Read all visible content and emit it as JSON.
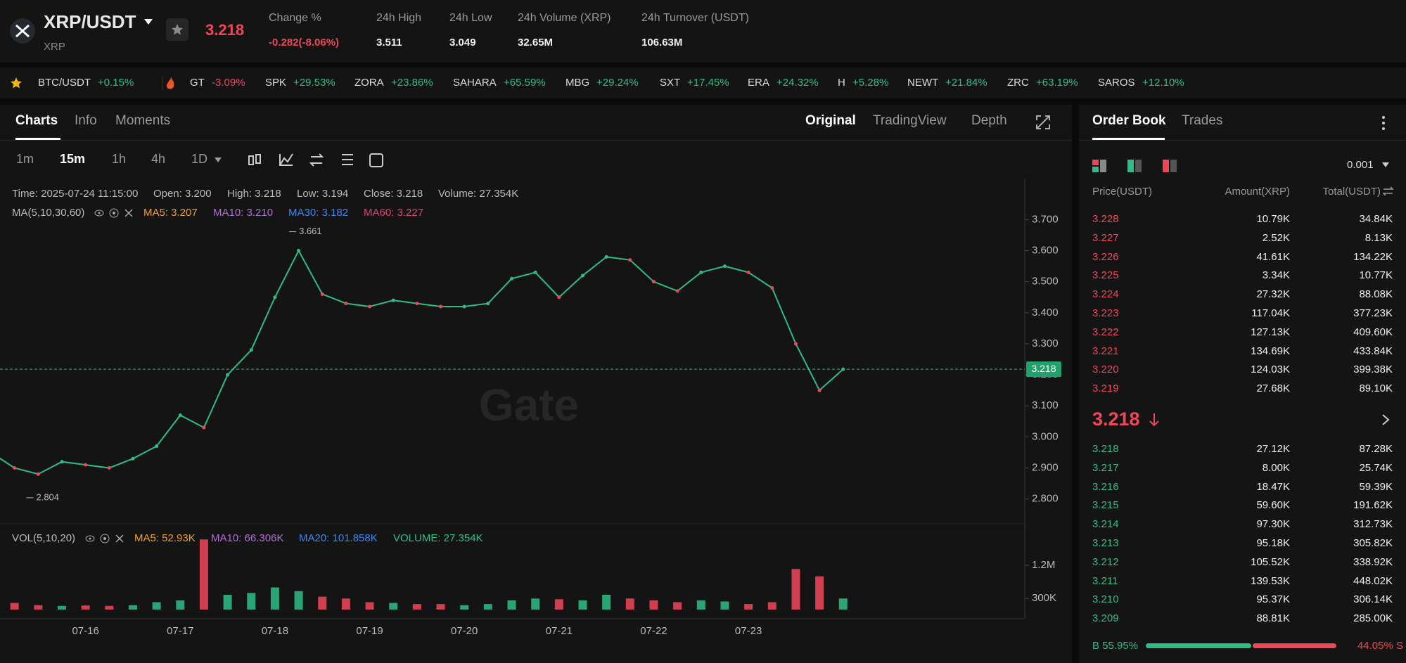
{
  "header": {
    "pair": "XRP/USDT",
    "base": "XRP",
    "price": "3.218",
    "stats": [
      {
        "label": "Change %",
        "value": "-0.282(-8.06%)"
      },
      {
        "label": "24h High",
        "value": "3.511"
      },
      {
        "label": "24h Low",
        "value": "3.049"
      },
      {
        "label": "24h Volume (XRP)",
        "value": "32.65M"
      },
      {
        "label": "24h Turnover (USDT)",
        "value": "106.63M"
      }
    ]
  },
  "ticker": [
    {
      "name": "BTC/USDT",
      "change": "+0.15%"
    },
    {
      "name": "GT",
      "change": "-3.09%"
    },
    {
      "name": "SPK",
      "change": "+29.53%"
    },
    {
      "name": "ZORA",
      "change": "+23.86%"
    },
    {
      "name": "SAHARA",
      "change": "+65.59%"
    },
    {
      "name": "MBG",
      "change": "+29.24%"
    },
    {
      "name": "SXT",
      "change": "+17.45%"
    },
    {
      "name": "ERA",
      "change": "+24.32%"
    },
    {
      "name": "H",
      "change": "+5.28%"
    },
    {
      "name": "NEWT",
      "change": "+21.84%"
    },
    {
      "name": "ZRC",
      "change": "+63.19%"
    },
    {
      "name": "SAROS",
      "change": "+12.10%"
    }
  ],
  "chart_tabs": [
    "Charts",
    "Info",
    "Moments"
  ],
  "view_tabs": [
    "Original",
    "TradingView",
    "Depth"
  ],
  "intervals": [
    "1m",
    "15m",
    "1h",
    "4h",
    "1D"
  ],
  "info_line": [
    "Time: 2025-07-24 11:15:00",
    "Open: 3.200",
    "High: 3.218",
    "Low: 3.194",
    "Close: 3.218",
    "Volume: 27.354K"
  ],
  "ma_legend": {
    "label": "MA(5,10,30,60)",
    "items": [
      {
        "text": "MA5: 3.207",
        "color": "#f0a020"
      },
      {
        "text": "MA10: 3.210",
        "color": "#b36bd8"
      },
      {
        "text": "MA30: 3.182",
        "color": "#3d86f0"
      },
      {
        "text": "MA60: 3.227",
        "color": "#e0407a"
      }
    ]
  },
  "vol_legend": {
    "label": "VOL(5,10,20)",
    "items": [
      {
        "text": "MA5: 52.93K",
        "color": "#f0a020"
      },
      {
        "text": "MA10: 66.306K",
        "color": "#b36bd8"
      },
      {
        "text": "MA20: 101.858K",
        "color": "#3d86f0"
      },
      {
        "text": "VOLUME: 27.354K",
        "color": "#2ebd85"
      }
    ]
  },
  "watermark": "Gate",
  "chart_data": [
    {
      "type": "line",
      "categories": [
        null,
        null,
        null,
        null,
        "07-16",
        null,
        null,
        null,
        "07-17",
        null,
        null,
        null,
        "07-18",
        null,
        null,
        null,
        "07-19",
        null,
        null,
        null,
        "07-20",
        null,
        null,
        null,
        "07-21",
        null,
        null,
        null,
        "07-22",
        null,
        null,
        null,
        "07-23",
        null,
        null,
        null,
        null
      ],
      "values": [
        2.95,
        2.9,
        2.88,
        2.92,
        2.91,
        2.9,
        2.93,
        2.97,
        3.07,
        3.03,
        3.2,
        3.28,
        3.45,
        3.6,
        3.46,
        3.43,
        3.42,
        3.44,
        3.43,
        3.42,
        3.42,
        3.43,
        3.51,
        3.53,
        3.45,
        3.52,
        3.58,
        3.57,
        3.5,
        3.47,
        3.53,
        3.55,
        3.53,
        3.48,
        3.3,
        3.15,
        3.218
      ],
      "color": "#2ebd85",
      "ylim": [
        2.72,
        3.83
      ],
      "yticks": [
        {
          "value": 2.8,
          "label": "2.800"
        },
        {
          "value": 2.9,
          "label": "2.900"
        },
        {
          "value": 3.0,
          "label": "3.000"
        },
        {
          "value": 3.1,
          "label": "3.100"
        },
        {
          "value": 3.2,
          "label": "3.200"
        },
        {
          "value": 3.3,
          "label": "3.300"
        },
        {
          "value": 3.4,
          "label": "3.400"
        },
        {
          "value": 3.5,
          "label": "3.500"
        },
        {
          "value": 3.6,
          "label": "3.600"
        },
        {
          "value": 3.7,
          "label": "3.700"
        }
      ],
      "last_price": {
        "value": 3.218,
        "label": "3.218"
      },
      "high": {
        "value": 3.661,
        "label": "3.661"
      },
      "low": {
        "value": 2.804,
        "label": "2.804"
      }
    },
    {
      "type": "bar",
      "values": [
        150000,
        180000,
        120000,
        100000,
        110000,
        100000,
        120000,
        200000,
        250000,
        1900000,
        400000,
        450000,
        600000,
        500000,
        350000,
        300000,
        200000,
        180000,
        150000,
        150000,
        120000,
        150000,
        250000,
        300000,
        280000,
        250000,
        400000,
        300000,
        250000,
        200000,
        250000,
        220000,
        150000,
        200000,
        1100000,
        900000,
        300000
      ],
      "up_color": "#2ebd85",
      "down_color": "#f0465a",
      "ylim": [
        0,
        2190000
      ],
      "yticks": [
        {
          "value": 300000,
          "label": "300K"
        },
        {
          "value": 1200000,
          "label": "1.2M"
        }
      ]
    }
  ],
  "order_book": {
    "tabs": [
      "Order Book",
      "Trades"
    ],
    "precision": "0.001",
    "columns": [
      "Price(USDT)",
      "Amount(XRP)",
      "Total(USDT)"
    ],
    "asks": [
      [
        "3.228",
        "10.79K",
        "34.84K"
      ],
      [
        "3.227",
        "2.52K",
        "8.13K"
      ],
      [
        "3.226",
        "41.61K",
        "134.22K"
      ],
      [
        "3.225",
        "3.34K",
        "10.77K"
      ],
      [
        "3.224",
        "27.32K",
        "88.08K"
      ],
      [
        "3.223",
        "117.04K",
        "377.23K"
      ],
      [
        "3.222",
        "127.13K",
        "409.60K"
      ],
      [
        "3.221",
        "134.69K",
        "433.84K"
      ],
      [
        "3.220",
        "124.03K",
        "399.38K"
      ],
      [
        "3.219",
        "27.68K",
        "89.10K"
      ]
    ],
    "mid_price": "3.218",
    "bids": [
      [
        "3.218",
        "27.12K",
        "87.28K"
      ],
      [
        "3.217",
        "8.00K",
        "25.74K"
      ],
      [
        "3.216",
        "18.47K",
        "59.39K"
      ],
      [
        "3.215",
        "59.60K",
        "191.62K"
      ],
      [
        "3.214",
        "97.30K",
        "312.73K"
      ],
      [
        "3.213",
        "95.18K",
        "305.82K"
      ],
      [
        "3.212",
        "105.52K",
        "338.92K"
      ],
      [
        "3.211",
        "139.53K",
        "448.02K"
      ],
      [
        "3.210",
        "95.37K",
        "306.14K"
      ],
      [
        "3.209",
        "88.81K",
        "285.00K"
      ]
    ],
    "buy": {
      "value": 55.95,
      "label": "B 55.95%"
    },
    "sell": {
      "value": 44.05,
      "label": "44.05% S"
    }
  }
}
